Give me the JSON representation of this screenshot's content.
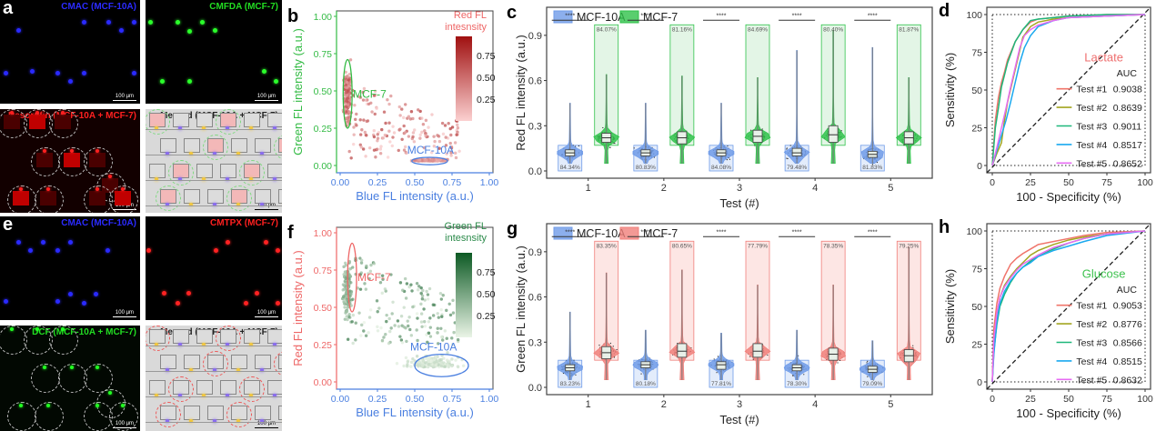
{
  "panels": {
    "a": {
      "label": "a",
      "images": [
        {
          "title": "CMAC (MCF-10A)",
          "color": "#2b2bff",
          "scale": "100 µm"
        },
        {
          "title": "CMFDA (MCF-7)",
          "color": "#22dd22",
          "scale": "100 µm"
        },
        {
          "title": "Resorufin (MCF-10A + MCF-7)",
          "color": "#ff2020",
          "scale": "100 µm"
        },
        {
          "title": "Merged (MCF-10A + MCF-7)",
          "color": "#222222",
          "scale": "100 µm"
        }
      ]
    },
    "e": {
      "label": "e",
      "images": [
        {
          "title": "CMAC (MCF-10A)",
          "color": "#2b2bff",
          "scale": "100 µm"
        },
        {
          "title": "CMTPX (MCF-7)",
          "color": "#ff2020",
          "scale": "100 µm"
        },
        {
          "title": "DCF (MCF-10A + MCF-7)",
          "color": "#22dd22",
          "scale": "100 µm"
        },
        {
          "title": "Merged (MCF-10A + MCF-7)",
          "color": "#222222",
          "scale": "100 µm"
        }
      ]
    }
  },
  "chart_data": [
    {
      "id": "b",
      "panel_label": "b",
      "type": "scatter",
      "xlabel": "Blue FL intensity (a.u.)",
      "ylabel": "Green FL intensity (a.u.)",
      "xlim": [
        0,
        1
      ],
      "ylim": [
        0,
        1
      ],
      "xticks": [
        "0.00",
        "0.25",
        "0.50",
        "0.75",
        "1.00"
      ],
      "yticks": [
        "0.00",
        "0.25",
        "0.50",
        "0.75",
        "1.00"
      ],
      "xlabel_color": "#4a7fe0",
      "ylabel_color": "#33bb44",
      "colorbar": {
        "title": [
          "Red FL",
          "intesnsity"
        ],
        "ticks": [
          "0.75",
          "0.50",
          "0.25"
        ],
        "low": "#fbd0d0",
        "high": "#a01010",
        "title_color": "#ee6666"
      },
      "clusters": [
        {
          "name": "MCF-7",
          "center": [
            0.05,
            0.48
          ],
          "radii": [
            0.03,
            0.23
          ],
          "color": "#33bb44"
        },
        {
          "name": "MCF-10A",
          "center": [
            0.6,
            0.03
          ],
          "radii": [
            0.12,
            0.025
          ],
          "color": "#4a7fe0"
        }
      ]
    },
    {
      "id": "f",
      "panel_label": "f",
      "type": "scatter",
      "xlabel": "Blue FL intensity (a.u.)",
      "ylabel": "Red FL intensity (a.u.)",
      "xlim": [
        0,
        1
      ],
      "ylim": [
        0,
        1
      ],
      "xticks": [
        "0.00",
        "0.25",
        "0.50",
        "0.75",
        "1.00"
      ],
      "yticks": [
        "0.00",
        "0.25",
        "0.50",
        "0.75",
        "1.00"
      ],
      "xlabel_color": "#4a7fe0",
      "ylabel_color": "#ee6666",
      "colorbar": {
        "title": [
          "Green FL",
          "intesnsity"
        ],
        "ticks": [
          "0.75",
          "0.50",
          "0.25"
        ],
        "low": "#eaf4e6",
        "high": "#0d5a24",
        "title_color": "#2b8a4a"
      },
      "clusters": [
        {
          "name": "MCF-7",
          "center": [
            0.08,
            0.7
          ],
          "radii": [
            0.03,
            0.23
          ],
          "color": "#ee6666"
        },
        {
          "name": "MCF-10A",
          "center": [
            0.68,
            0.11
          ],
          "radii": [
            0.18,
            0.075
          ],
          "color": "#4a7fe0"
        }
      ]
    },
    {
      "id": "c",
      "panel_label": "c",
      "type": "violin",
      "xlabel": "Test (#)",
      "ylabel": "Red FL intensity (a.u.)",
      "ylim": [
        0,
        1.05
      ],
      "yticks": [
        "0.0",
        "0.3",
        "0.6",
        "0.9"
      ],
      "categories": [
        "1",
        "2",
        "3",
        "4",
        "5"
      ],
      "significance": "****",
      "series": [
        {
          "name": "MCF-10A",
          "color": "#6f9be8",
          "fill": "#e3ecfb",
          "medians": [
            0.12,
            0.12,
            0.12,
            0.12,
            0.11
          ],
          "q1": [
            0.1,
            0.1,
            0.1,
            0.1,
            0.09
          ],
          "q3": [
            0.14,
            0.14,
            0.14,
            0.15,
            0.13
          ],
          "max": [
            0.45,
            0.45,
            0.45,
            0.8,
            0.82
          ],
          "gate_top": 0.17,
          "percents": [
            "84.34%",
            "80.83%",
            "84.08%",
            "79.48%",
            "81.83%"
          ]
        },
        {
          "name": "MCF-7",
          "color": "#2fc24a",
          "fill": "#e3f5e6",
          "medians": [
            0.22,
            0.22,
            0.23,
            0.24,
            0.22
          ],
          "q1": [
            0.19,
            0.18,
            0.19,
            0.19,
            0.18
          ],
          "q3": [
            0.25,
            0.26,
            0.27,
            0.3,
            0.26
          ],
          "max": [
            0.64,
            0.63,
            0.62,
            0.93,
            0.62
          ],
          "gate_bottom": 0.17,
          "percents": [
            "84.07%",
            "81.16%",
            "84.69%",
            "80.40%",
            "81.87%"
          ]
        }
      ]
    },
    {
      "id": "g",
      "panel_label": "g",
      "type": "violin",
      "xlabel": "Test (#)",
      "ylabel": "Green FL intensity (a.u.)",
      "ylim": [
        0,
        1.05
      ],
      "yticks": [
        "0.0",
        "0.3",
        "0.6",
        "0.9"
      ],
      "categories": [
        "1",
        "2",
        "3",
        "4",
        "5"
      ],
      "significance": "****",
      "series": [
        {
          "name": "MCF-10A",
          "color": "#6f9be8",
          "fill": "#e3ecfb",
          "medians": [
            0.13,
            0.15,
            0.15,
            0.13,
            0.12
          ],
          "q1": [
            0.11,
            0.13,
            0.12,
            0.11,
            0.1
          ],
          "q3": [
            0.15,
            0.17,
            0.17,
            0.15,
            0.14
          ],
          "max": [
            0.5,
            0.38,
            0.36,
            0.38,
            0.31
          ],
          "gate_top": 0.18,
          "percents": [
            "83.23%",
            "80.18%",
            "77.81%",
            "78.30%",
            "79.09%"
          ]
        },
        {
          "name": "MCF-7",
          "color": "#f07f7a",
          "fill": "#fde6e4",
          "medians": [
            0.23,
            0.24,
            0.24,
            0.22,
            0.21
          ],
          "q1": [
            0.19,
            0.2,
            0.2,
            0.18,
            0.17
          ],
          "q3": [
            0.27,
            0.29,
            0.29,
            0.26,
            0.25
          ],
          "max": [
            0.76,
            0.78,
            0.68,
            0.68,
            0.93
          ],
          "gate_bottom": 0.18,
          "percents": [
            "83.35%",
            "80.65%",
            "77.79%",
            "78.35%",
            "79.25%"
          ]
        }
      ]
    },
    {
      "id": "d",
      "panel_label": "d",
      "type": "line",
      "title": "Lactate",
      "title_color": "#ee6f6f",
      "xlabel": "100 - Specificity (%)",
      "ylabel": "Sensitivity (%)",
      "xlim": [
        0,
        100
      ],
      "ylim": [
        0,
        100
      ],
      "xticks": [
        "0",
        "25",
        "50",
        "75",
        "100"
      ],
      "yticks": [
        "0",
        "25",
        "50",
        "75",
        "100"
      ],
      "legend_header": "AUC",
      "legend_position": "bottom-right",
      "series": [
        {
          "name": "Test #1",
          "auc": "0.9038",
          "color": "#f0746a",
          "x": [
            0,
            2,
            4,
            6,
            8,
            10,
            15,
            20,
            25,
            30,
            40,
            50,
            75,
            100
          ],
          "y": [
            0,
            30,
            45,
            55,
            62,
            70,
            82,
            90,
            95,
            97,
            98,
            99,
            100,
            100
          ]
        },
        {
          "name": "Test #2",
          "auc": "0.8639",
          "color": "#a3a520",
          "x": [
            0,
            3,
            6,
            8,
            10,
            13,
            17,
            20,
            25,
            30,
            40,
            50,
            75,
            100
          ],
          "y": [
            0,
            8,
            15,
            30,
            42,
            55,
            72,
            85,
            92,
            95,
            97,
            98,
            99,
            100
          ]
        },
        {
          "name": "Test #3",
          "auc": "0.9011",
          "color": "#1db77a",
          "x": [
            0,
            2,
            4,
            6,
            8,
            10,
            15,
            20,
            25,
            30,
            40,
            50,
            75,
            100
          ],
          "y": [
            0,
            25,
            38,
            52,
            60,
            68,
            82,
            90,
            96,
            97,
            98,
            99,
            100,
            100
          ]
        },
        {
          "name": "Test #4",
          "auc": "0.8517",
          "color": "#1aa9ef",
          "x": [
            0,
            3,
            6,
            9,
            12,
            15,
            18,
            21,
            25,
            30,
            40,
            50,
            75,
            100
          ],
          "y": [
            0,
            10,
            20,
            30,
            42,
            55,
            68,
            78,
            86,
            92,
            96,
            98,
            99,
            100
          ]
        },
        {
          "name": "Test #5",
          "auc": "0.8652",
          "color": "#e76cf3",
          "x": [
            0,
            3,
            6,
            9,
            12,
            15,
            18,
            21,
            25,
            30,
            40,
            50,
            75,
            100
          ],
          "y": [
            0,
            12,
            25,
            38,
            52,
            65,
            78,
            86,
            90,
            93,
            96,
            98,
            99,
            100
          ]
        }
      ]
    },
    {
      "id": "h",
      "panel_label": "h",
      "type": "line",
      "title": "Glucose",
      "title_color": "#3ec24f",
      "xlabel": "100 - Specificity (%)",
      "ylabel": "Sensitivity (%)",
      "xlim": [
        0,
        100
      ],
      "ylim": [
        0,
        100
      ],
      "xticks": [
        "0",
        "25",
        "50",
        "75",
        "100"
      ],
      "yticks": [
        "0",
        "25",
        "50",
        "75",
        "100"
      ],
      "legend_header": "AUC",
      "legend_position": "bottom-right",
      "series": [
        {
          "name": "Test #1",
          "auc": "0.9053",
          "color": "#f0746a",
          "x": [
            0,
            1,
            3,
            5,
            8,
            12,
            16,
            20,
            25,
            30,
            40,
            50,
            60,
            75,
            100
          ],
          "y": [
            0,
            35,
            52,
            62,
            70,
            78,
            82,
            85,
            88,
            91,
            93,
            95,
            97,
            99,
            100
          ]
        },
        {
          "name": "Test #2",
          "auc": "0.8776",
          "color": "#a3a520",
          "x": [
            0,
            1,
            3,
            5,
            8,
            12,
            16,
            20,
            25,
            30,
            40,
            50,
            60,
            75,
            100
          ],
          "y": [
            0,
            25,
            45,
            56,
            64,
            70,
            75,
            79,
            84,
            87,
            91,
            94,
            96,
            98,
            100
          ]
        },
        {
          "name": "Test #3",
          "auc": "0.8566",
          "color": "#1db77a",
          "x": [
            0,
            1,
            3,
            5,
            8,
            12,
            16,
            20,
            25,
            30,
            40,
            50,
            60,
            75,
            100
          ],
          "y": [
            0,
            20,
            38,
            50,
            58,
            66,
            72,
            76,
            80,
            84,
            88,
            92,
            95,
            98,
            100
          ]
        },
        {
          "name": "Test #4",
          "auc": "0.8515",
          "color": "#1aa9ef",
          "x": [
            0,
            1,
            3,
            5,
            8,
            12,
            16,
            20,
            25,
            30,
            40,
            50,
            60,
            75,
            100
          ],
          "y": [
            0,
            18,
            40,
            52,
            60,
            67,
            72,
            76,
            79,
            83,
            87,
            90,
            93,
            97,
            100
          ]
        },
        {
          "name": "Test #5",
          "auc": "0.8632",
          "color": "#e76cf3",
          "x": [
            0,
            1,
            3,
            5,
            8,
            12,
            16,
            20,
            25,
            30,
            40,
            50,
            60,
            75,
            100
          ],
          "y": [
            0,
            28,
            46,
            56,
            63,
            69,
            74,
            78,
            81,
            84,
            89,
            92,
            95,
            98,
            100
          ]
        }
      ]
    }
  ]
}
